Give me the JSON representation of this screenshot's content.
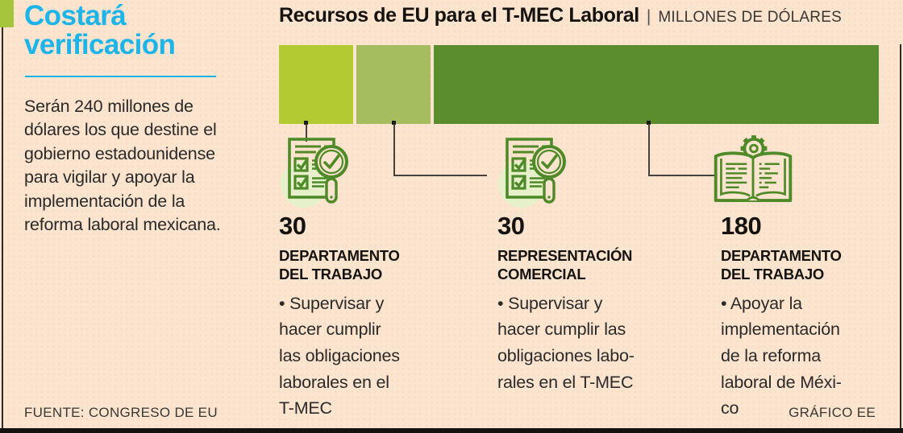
{
  "page": {
    "background": "#fce4cf",
    "accent_cyan": "#1db4e9",
    "accent_green": "#a6c43c",
    "icon_green": "#4f8a28",
    "icon_halo": "#e6f0cb"
  },
  "left_panel": {
    "title_lines": [
      "Costará",
      "verificación"
    ],
    "body_lines": [
      "Serán 240 millones de",
      "dólares los que destine el",
      "gobierno estadounidense",
      "para vigilar y apoyar la",
      "implementación de la",
      "reforma laboral mexicana."
    ]
  },
  "header": {
    "title": "Recursos de EU para el T-MEC Laboral",
    "separator": "|",
    "units": "MILLONES DE DÓLARES"
  },
  "chart_data": {
    "type": "bar",
    "orientation": "horizontal-stacked",
    "title": "Recursos de EU para el T-MEC Laboral",
    "units": "Millones de dólares",
    "total": 240,
    "categories": [
      "Departamento del Trabajo",
      "Representación Comercial",
      "Departamento del Trabajo"
    ],
    "values": [
      30,
      30,
      180
    ],
    "colors": [
      "#b3ca32",
      "#a5bd5e",
      "#5b8c2e"
    ],
    "legend": "none",
    "grid": false
  },
  "segments": [
    {
      "value": "30",
      "dept_lines": [
        "DEPARTAMENTO",
        "DEL TRABAJO"
      ],
      "desc_lines": [
        "• Supervisar y",
        "hacer cumplir",
        "las obligaciones",
        "laborales en el",
        "T-MEC"
      ],
      "icon": "checklist-magnifier"
    },
    {
      "value": "30",
      "dept_lines": [
        "REPRESENTACIÓN",
        "COMERCIAL"
      ],
      "desc_lines": [
        "• Supervisar y",
        "hacer cumplir las",
        "obligaciones labo-",
        "rales en el T-MEC"
      ],
      "icon": "checklist-magnifier"
    },
    {
      "value": "180",
      "dept_lines": [
        "DEPARTAMENTO",
        "DEL TRABAJO"
      ],
      "desc_lines": [
        "• Apoyar la",
        "implementación",
        "de la reforma",
        "laboral de Méxi-",
        "co"
      ],
      "icon": "book-gear"
    }
  ],
  "footer": {
    "source": "FUENTE: CONGRESO DE EU",
    "credit": "GRÁFICO EE"
  }
}
